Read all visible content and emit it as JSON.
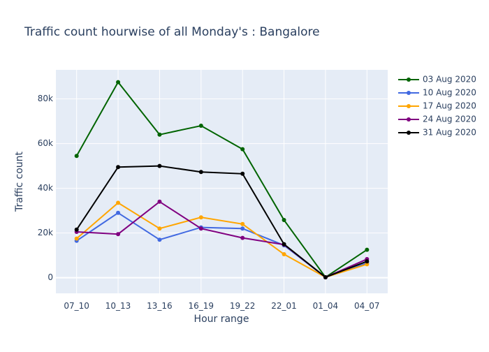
{
  "chart_data": {
    "type": "line",
    "title": "Traffic count hourwise of all Monday's : Bangalore",
    "xlabel": "Hour range",
    "ylabel": "Traffic count",
    "categories": [
      "07_10",
      "10_13",
      "13_16",
      "16_19",
      "19_22",
      "22_01",
      "01_04",
      "04_07"
    ],
    "ylim": [
      -7000,
      93000
    ],
    "yticks": [
      0,
      20000,
      40000,
      60000,
      80000
    ],
    "ytick_labels": [
      "0",
      "20k",
      "40k",
      "60k",
      "80k"
    ],
    "grid": true,
    "legend_position": "top-right",
    "series": [
      {
        "name": "03 Aug 2020",
        "color": "#006400",
        "values": [
          54500,
          87500,
          64000,
          68000,
          57500,
          25800,
          200,
          12500
        ]
      },
      {
        "name": "10 Aug 2020",
        "color": "#4169E1",
        "values": [
          16500,
          29000,
          17000,
          22500,
          22000,
          14500,
          200,
          6500
        ]
      },
      {
        "name": "17 Aug 2020",
        "color": "#FFA500",
        "values": [
          17500,
          33500,
          22000,
          27000,
          24000,
          10500,
          200,
          6000
        ]
      },
      {
        "name": "24 Aug 2020",
        "color": "#800080",
        "values": [
          20500,
          19500,
          34000,
          22000,
          17800,
          14800,
          200,
          8300
        ]
      },
      {
        "name": "31 Aug 2020",
        "color": "#000000",
        "values": [
          21500,
          49500,
          50000,
          47300,
          46500,
          15000,
          200,
          7300
        ]
      }
    ]
  }
}
